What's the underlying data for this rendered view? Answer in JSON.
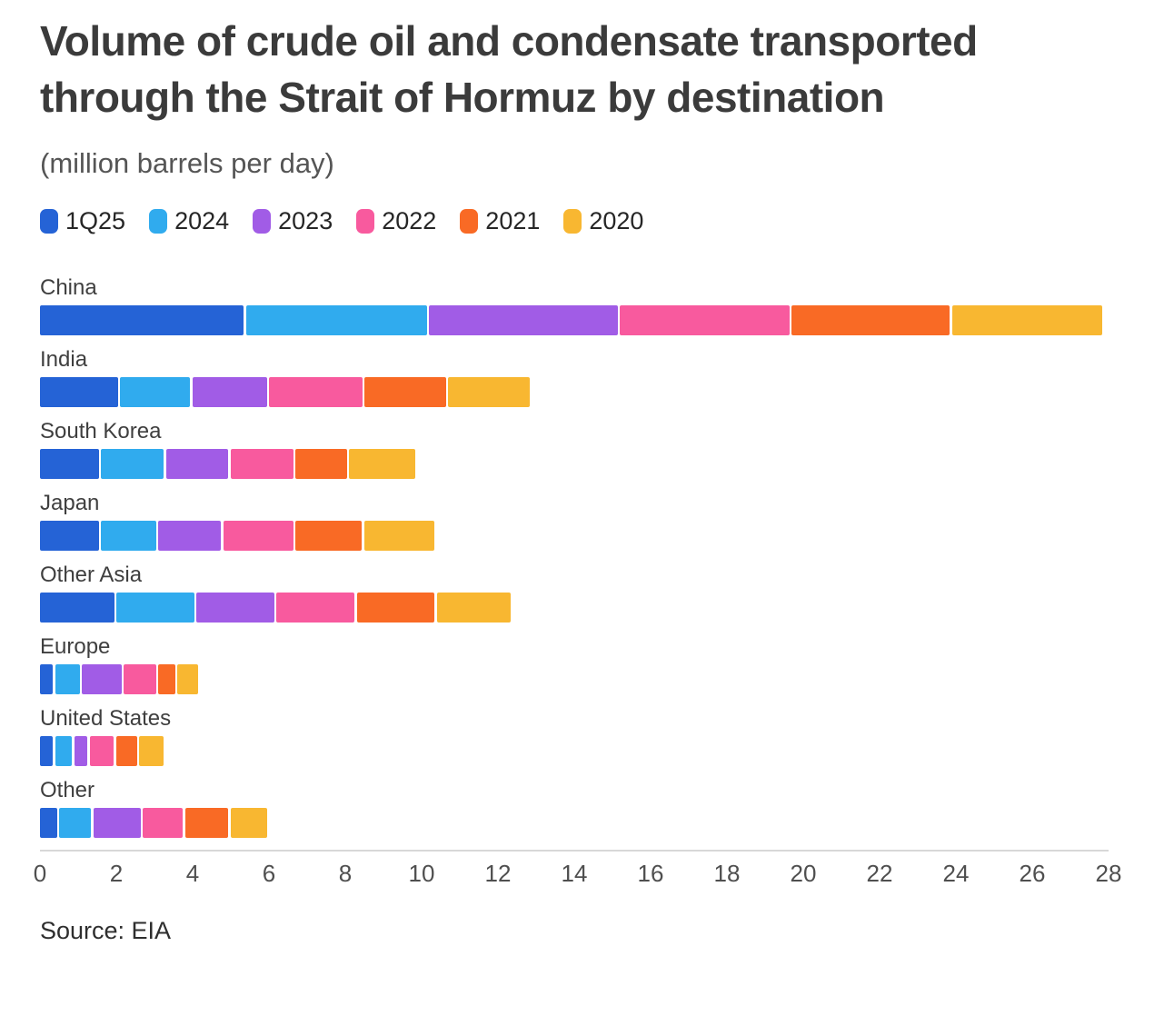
{
  "header": {
    "title": "Volume of crude oil and condensate transported through the Strait of Hormuz by destination",
    "subtitle": "(million barrels per day)"
  },
  "footer": {
    "source": "Source: EIA"
  },
  "chart_data": {
    "type": "bar",
    "orientation": "horizontal-stacked",
    "title": "Volume of crude oil and condensate transported through the Strait of Hormuz by destination",
    "subtitle": "(million barrels per day)",
    "unit": "million barrels per day",
    "legend_position": "top",
    "grid": false,
    "xlim": [
      0,
      28
    ],
    "x_ticks": [
      0,
      2,
      4,
      6,
      8,
      10,
      12,
      14,
      16,
      18,
      20,
      22,
      24,
      26,
      28
    ],
    "categories": [
      "China",
      "India",
      "South Korea",
      "Japan",
      "Other Asia",
      "Europe",
      "United States",
      "Other"
    ],
    "series": [
      {
        "name": "1Q25",
        "color": "#2563d6",
        "values": [
          5.4,
          2.1,
          1.6,
          1.6,
          2.0,
          0.4,
          0.4,
          0.5
        ]
      },
      {
        "name": "2024",
        "color": "#30abee",
        "values": [
          4.8,
          1.9,
          1.7,
          1.5,
          2.1,
          0.7,
          0.5,
          0.9
        ]
      },
      {
        "name": "2023",
        "color": "#a15ce6",
        "values": [
          5.0,
          2.0,
          1.7,
          1.7,
          2.1,
          1.1,
          0.4,
          1.3
        ]
      },
      {
        "name": "2022",
        "color": "#f85a9e",
        "values": [
          4.5,
          2.5,
          1.7,
          1.9,
          2.1,
          0.9,
          0.7,
          1.1
        ]
      },
      {
        "name": "2021",
        "color": "#f96a25",
        "values": [
          4.2,
          2.2,
          1.4,
          1.8,
          2.1,
          0.5,
          0.6,
          1.2
        ]
      },
      {
        "name": "2020",
        "color": "#f8b731",
        "values": [
          4.0,
          2.2,
          1.8,
          1.9,
          2.0,
          0.6,
          0.7,
          1.0
        ]
      }
    ]
  }
}
